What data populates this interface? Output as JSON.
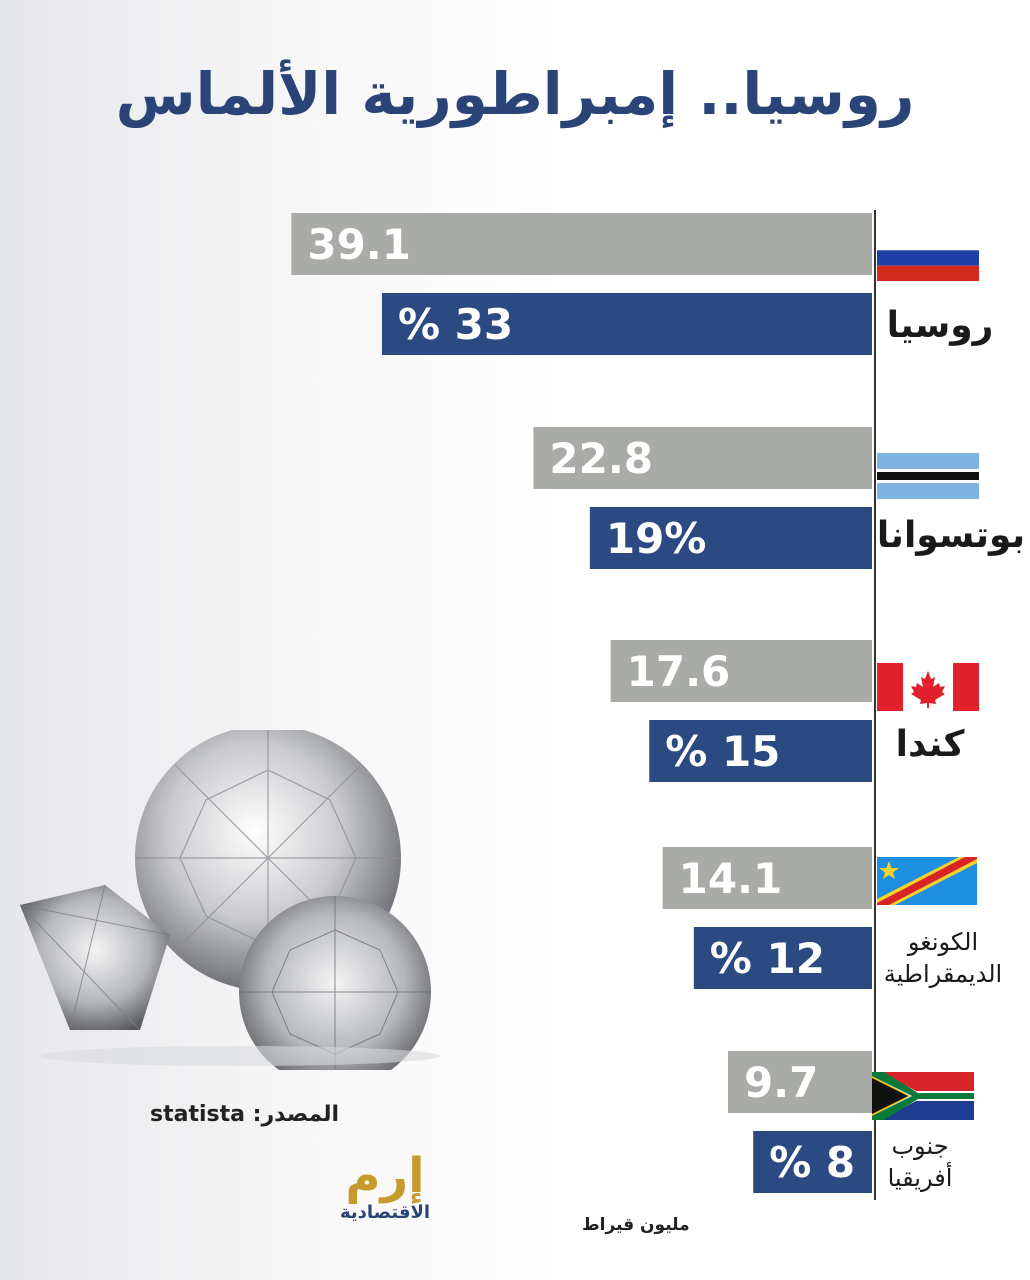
{
  "title": "روسيا.. إمبراطورية الألماس",
  "source": "المصدر: statista",
  "unit": "مليون قيراط",
  "logo": {
    "mark": "إرم",
    "sub": "الاقتصادية"
  },
  "colors": {
    "gray_bar": "#a8aba6",
    "blue_bar": "#2c4a82",
    "title": "#2a4478",
    "axis": "#333333",
    "bar_text": "#ffffff"
  },
  "chart_data": {
    "type": "bar",
    "orientation": "horizontal",
    "direction": "right-to-left",
    "categories": [
      "روسيا",
      "بوتسوانا",
      "كندا",
      "الكونغو الديمقراطية",
      "جنوب أفريقيا"
    ],
    "series": [
      {
        "values": [
          39.1,
          22.8,
          17.6,
          14.1,
          9.7
        ],
        "labels": [
          "39.1",
          "22.8",
          "17.6",
          "14.1",
          "9.7"
        ]
      },
      {
        "values": [
          33,
          19,
          15,
          12,
          8
        ],
        "labels": [
          "% 33",
          "19%",
          "% 15",
          "% 12",
          "% 8"
        ]
      }
    ]
  },
  "countries": [
    {
      "name": "روسيا",
      "flag": "russia-flag-icon"
    },
    {
      "name": "بوتسوانا",
      "flag": "botswana-flag-icon"
    },
    {
      "name": "كندا",
      "flag": "canada-flag-icon"
    },
    {
      "name_line1": "الكونغو",
      "name_line2": "الديمقراطية",
      "flag": "drc-flag-icon"
    },
    {
      "name_line1": "جنوب",
      "name_line2": "أفريقيا",
      "flag": "south-africa-flag-icon"
    }
  ]
}
